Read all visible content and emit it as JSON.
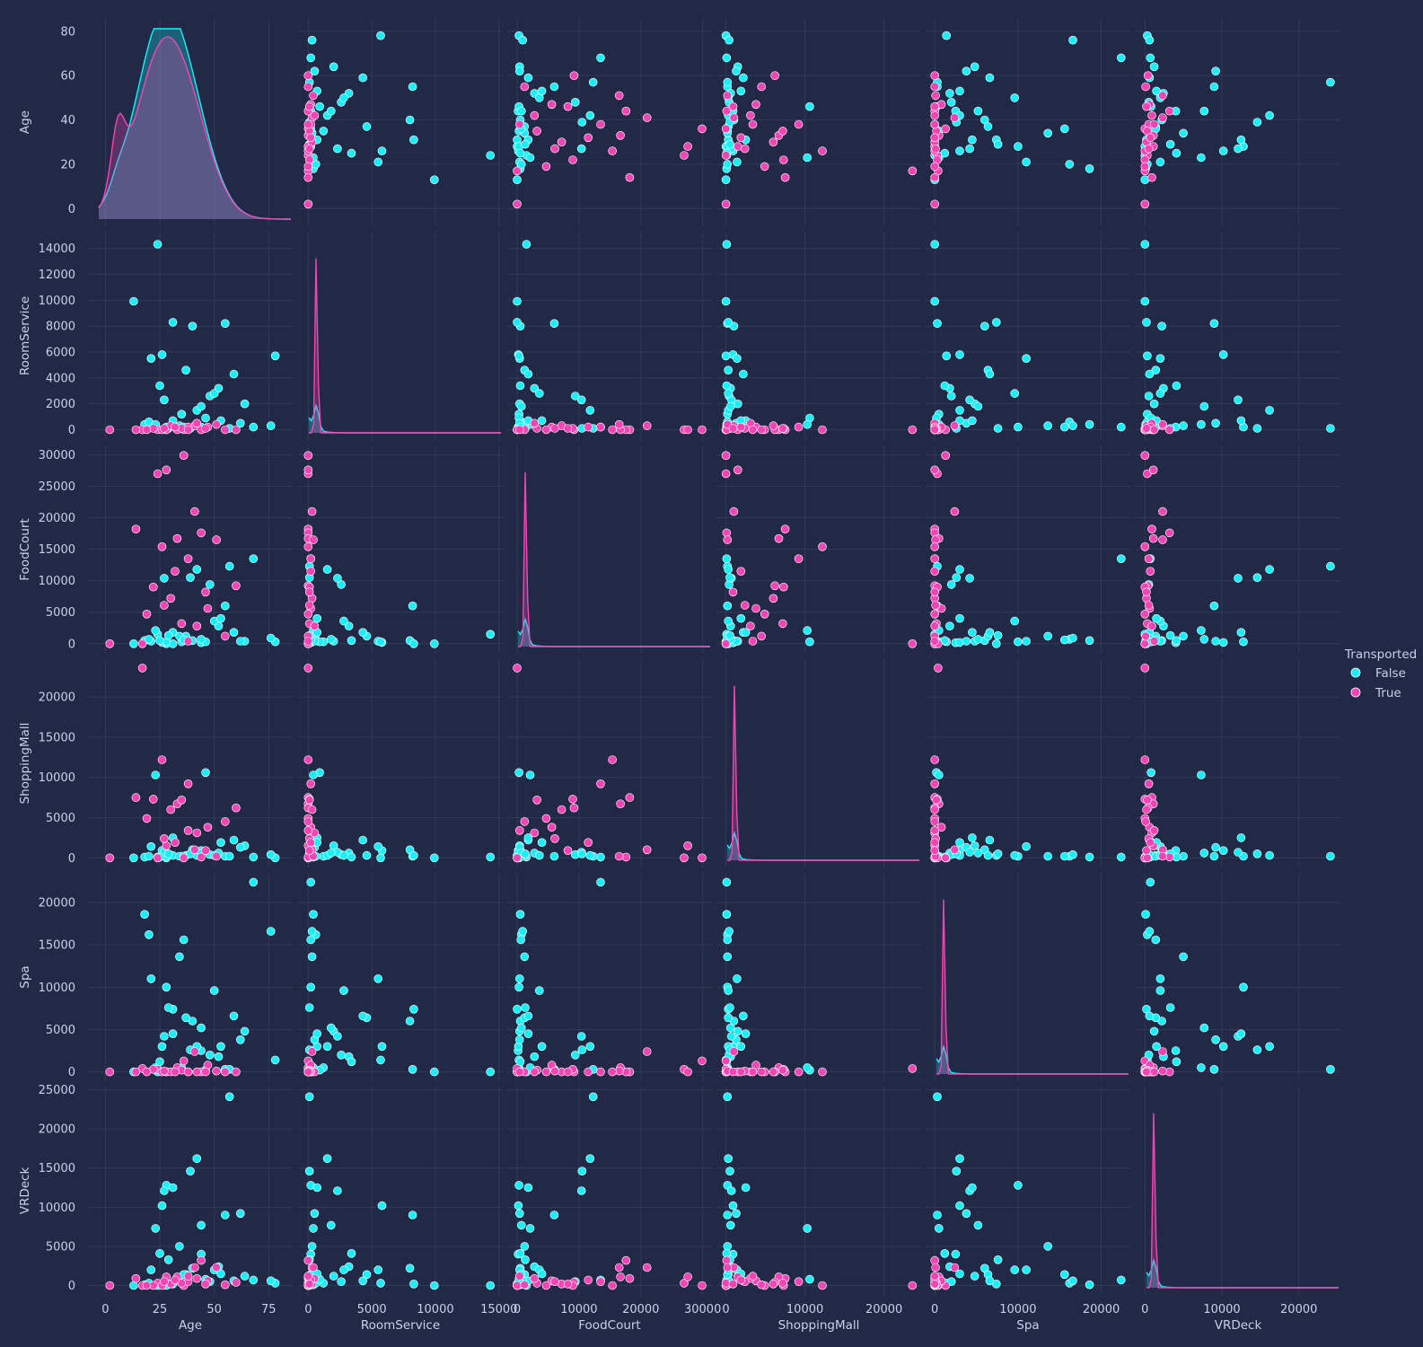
{
  "chart_data": {
    "type": "scatter",
    "kind": "pairplot",
    "variables": [
      "Age",
      "RoomService",
      "FoodCourt",
      "ShoppingMall",
      "Spa",
      "VRDeck"
    ],
    "hue": "Transported",
    "colors": {
      "background": "#212946",
      "grid": "#2f3a5e",
      "text": "#c9d1e8",
      "False": "#18f0f8",
      "True": "#f545b4"
    },
    "legend": {
      "title": "Transported",
      "entries": [
        "False",
        "True"
      ],
      "placement": "right"
    },
    "grid": true,
    "axes": {
      "Age": {
        "range": [
          -8,
          86
        ],
        "ticks": [
          0,
          25,
          50,
          75
        ],
        "row_ticks": [
          0,
          20,
          40,
          60,
          80
        ]
      },
      "RoomService": {
        "range": [
          -800,
          15300
        ],
        "ticks": [
          0,
          5000,
          10000,
          15000
        ],
        "row_ticks": [
          0,
          2000,
          4000,
          6000,
          8000,
          10000,
          12000,
          14000
        ]
      },
      "FoodCourt": {
        "range": [
          -1600,
          31500
        ],
        "ticks": [
          0,
          10000,
          20000,
          30000
        ],
        "row_ticks": [
          0,
          5000,
          10000,
          15000,
          20000,
          25000,
          30000
        ]
      },
      "ShoppingMall": {
        "range": [
          -1200,
          24700
        ],
        "ticks": [
          0,
          10000,
          20000
        ],
        "row_ticks": [
          0,
          5000,
          10000,
          15000,
          20000
        ]
      },
      "Spa": {
        "range": [
          -1100,
          23500
        ],
        "ticks": [
          0,
          10000,
          20000
        ],
        "row_ticks": [
          0,
          5000,
          10000,
          15000,
          20000
        ]
      },
      "VRDeck": {
        "range": [
          -1200,
          25400
        ],
        "ticks": [
          0,
          10000,
          20000
        ],
        "row_ticks": [
          0,
          5000,
          10000,
          15000,
          20000,
          25000
        ]
      }
    },
    "series": [
      {
        "name": "False",
        "points": [
          [
            28,
            0,
            0,
            0,
            0,
            0
          ],
          [
            35,
            1200,
            300,
            200,
            500,
            300
          ],
          [
            44,
            200,
            150,
            900,
            2500,
            4000
          ],
          [
            24,
            14327,
            1500,
            100,
            0,
            0
          ],
          [
            13,
            9920,
            0,
            0,
            0,
            0
          ],
          [
            55,
            8210,
            6000,
            200,
            300,
            9000
          ],
          [
            40,
            8000,
            500,
            1000,
            6000,
            2200
          ],
          [
            31,
            8300,
            0,
            300,
            7400,
            200
          ],
          [
            26,
            5800,
            200,
            900,
            3000,
            10200
          ],
          [
            21,
            5500,
            400,
            1400,
            11000,
            2000
          ],
          [
            37,
            4600,
            1200,
            300,
            6400,
            1400
          ],
          [
            52,
            3200,
            2800,
            600,
            1800,
            2400
          ],
          [
            59,
            4300,
            1800,
            2200,
            6600,
            600
          ],
          [
            78,
            5700,
            300,
            0,
            1400,
            300
          ],
          [
            64,
            2000,
            400,
            1500,
            4800,
            1200
          ],
          [
            48,
            2600,
            9400,
            400,
            2000,
            500
          ],
          [
            68,
            200,
            13500,
            100,
            22400,
            700
          ],
          [
            18,
            400,
            500,
            100,
            18600,
            100
          ],
          [
            20,
            600,
            700,
            200,
            16200,
            300
          ],
          [
            76,
            300,
            900,
            400,
            16600,
            600
          ],
          [
            57,
            100,
            12300,
            200,
            300,
            24100
          ],
          [
            46,
            900,
            300,
            10600,
            200,
            800
          ],
          [
            23,
            400,
            2100,
            10300,
            500,
            7300
          ],
          [
            28,
            200,
            300,
            200,
            10000,
            12800
          ],
          [
            34,
            300,
            1200,
            200,
            13600,
            5000
          ],
          [
            42,
            1500,
            11800,
            300,
            3000,
            16200
          ],
          [
            62,
            500,
            400,
            1300,
            3800,
            9200
          ],
          [
            27,
            2300,
            10400,
            700,
            4200,
            12100
          ],
          [
            36,
            200,
            600,
            200,
            15600,
            1400
          ],
          [
            31,
            700,
            1800,
            2500,
            4500,
            12500
          ],
          [
            50,
            2800,
            3600,
            300,
            9600,
            2000
          ],
          [
            39,
            100,
            10500,
            500,
            2600,
            14600
          ],
          [
            25,
            3400,
            500,
            100,
            1200,
            4100
          ],
          [
            44,
            1800,
            700,
            600,
            5200,
            7700
          ],
          [
            53,
            700,
            4000,
            1900,
            3000,
            1500
          ],
          [
            29,
            100,
            1300,
            500,
            7600,
            3300
          ]
        ]
      },
      {
        "name": "True",
        "points": [
          [
            2,
            0,
            0,
            0,
            0,
            0
          ],
          [
            36,
            0,
            29900,
            0,
            1300,
            0
          ],
          [
            24,
            0,
            27000,
            0,
            300,
            300
          ],
          [
            28,
            0,
            27600,
            1500,
            0,
            1100
          ],
          [
            17,
            0,
            0,
            23600,
            400,
            0
          ],
          [
            41,
            300,
            21000,
            1000,
            2400,
            2300
          ],
          [
            14,
            0,
            18200,
            7500,
            0,
            900
          ],
          [
            44,
            0,
            17600,
            100,
            0,
            3200
          ],
          [
            33,
            0,
            16700,
            6700,
            500,
            1100
          ],
          [
            51,
            400,
            16500,
            200,
            100,
            2300
          ],
          [
            26,
            0,
            15400,
            12200,
            0,
            0
          ],
          [
            38,
            200,
            13500,
            9200,
            0,
            500
          ],
          [
            60,
            0,
            9200,
            6200,
            0,
            400
          ],
          [
            22,
            100,
            9000,
            7300,
            300,
            0
          ],
          [
            30,
            300,
            7200,
            6000,
            0,
            200
          ],
          [
            47,
            200,
            5600,
            3800,
            800,
            600
          ],
          [
            19,
            0,
            4700,
            4900,
            0,
            0
          ],
          [
            35,
            100,
            3200,
            7200,
            200,
            300
          ],
          [
            42,
            500,
            2800,
            3100,
            0,
            900
          ],
          [
            27,
            100,
            6100,
            2400,
            100,
            500
          ],
          [
            55,
            0,
            1200,
            4500,
            0,
            100
          ],
          [
            32,
            200,
            11500,
            1900,
            0,
            700
          ],
          [
            46,
            100,
            8200,
            900,
            0,
            200
          ],
          [
            38,
            0,
            400,
            3400,
            0,
            1200
          ]
        ]
      }
    ]
  }
}
